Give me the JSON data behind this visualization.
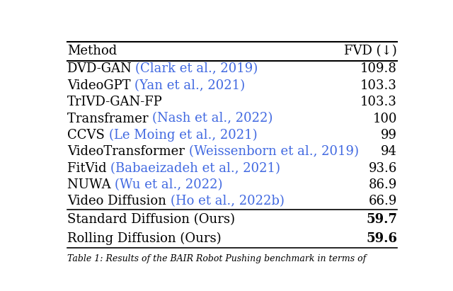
{
  "col_header": [
    "Method",
    "FVD (↓)"
  ],
  "rows_normal": [
    {
      "method_plain": "DVD-GAN ",
      "method_cite": "(Clark et al., 2019)",
      "fvd": "109.8"
    },
    {
      "method_plain": "VideoGPT ",
      "method_cite": "(Yan et al., 2021)",
      "fvd": "103.3"
    },
    {
      "method_plain": "TrIVD-GAN-FP",
      "method_cite": "",
      "fvd": "103.3"
    },
    {
      "method_plain": "Transframer ",
      "method_cite": "(Nash et al., 2022)",
      "fvd": "100"
    },
    {
      "method_plain": "CCVS ",
      "method_cite": "(Le Moing et al., 2021)",
      "fvd": "99"
    },
    {
      "method_plain": "VideoTransformer ",
      "method_cite": "(Weissenborn et al., 2019)",
      "fvd": "94"
    },
    {
      "method_plain": "FitVid ",
      "method_cite": "(Babaeizadeh et al., 2021)",
      "fvd": "93.6"
    },
    {
      "method_plain": "NUWA ",
      "method_cite": "(Wu et al., 2022)",
      "fvd": "86.9"
    },
    {
      "method_plain": "Video Diffusion ",
      "method_cite": "(Ho et al., 2022b)",
      "fvd": "66.9"
    }
  ],
  "rows_ours": [
    {
      "method_plain": "Standard Diffusion (Ours)",
      "method_cite": "",
      "fvd": "59.7"
    },
    {
      "method_plain": "Rolling Diffusion (Ours)",
      "method_cite": "",
      "fvd": "59.6"
    }
  ],
  "cite_color": "#4169E1",
  "plain_color": "#000000",
  "header_color": "#000000",
  "bg_color": "#ffffff",
  "font_size": 13.0,
  "header_font_size": 13.0,
  "caption": "Table 1: Results of the BAIR Robot Pushing benchmark in terms of",
  "caption_color": "#000000"
}
